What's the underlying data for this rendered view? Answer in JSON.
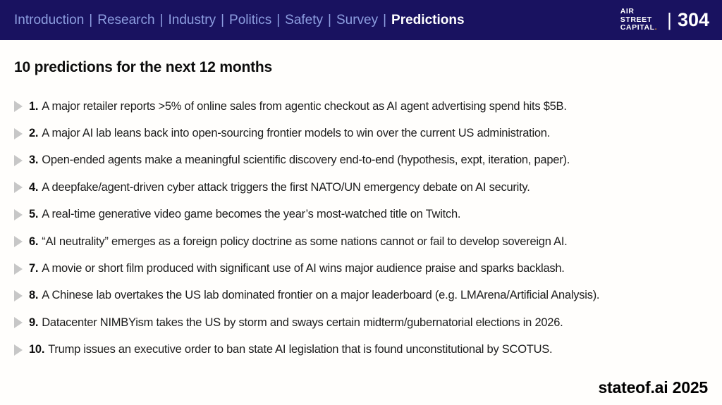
{
  "header": {
    "nav": [
      "Introduction",
      "Research",
      "Industry",
      "Politics",
      "Safety",
      "Survey",
      "Predictions"
    ],
    "active_nav": "Predictions",
    "separator": "|",
    "logo": {
      "line1": "AIR",
      "line2": "STREET",
      "line3": "CAPITAL",
      "dot": "."
    },
    "page": {
      "separator": "|",
      "number": "304"
    }
  },
  "main": {
    "title": "10 predictions for the next 12 months"
  },
  "predictions": [
    {
      "number": "1.",
      "text": "A major retailer reports >5% of online sales from agentic checkout as AI agent advertising spend hits $5B."
    },
    {
      "number": "2.",
      "text": "A major AI lab leans back into open-sourcing frontier models to win over the current US administration."
    },
    {
      "number": "3.",
      "text": "Open-ended agents make a meaningful scientific discovery end-to-end (hypothesis, expt, iteration, paper)."
    },
    {
      "number": "4.",
      "text": "A deepfake/agent-driven cyber attack triggers the first NATO/UN emergency debate on AI security."
    },
    {
      "number": "5.",
      "text": "A real-time generative video game becomes the year’s most-watched title on Twitch."
    },
    {
      "number": "6.",
      "text": "“AI neutrality” emerges as a foreign policy doctrine as some nations cannot or fail to develop sovereign AI."
    },
    {
      "number": "7.",
      "text": "A movie or short film produced with significant use of AI wins major audience praise and sparks backlash."
    },
    {
      "number": "8.",
      "text": "A Chinese lab overtakes the US lab dominated frontier on a major leaderboard (e.g. LMArena/Artificial Analysis)."
    },
    {
      "number": "9.",
      "text": "Datacenter NIMBYism takes the US by storm and sways certain midterm/gubernatorial elections in 2026."
    },
    {
      "number": "10.",
      "text": "Trump issues an executive order to ban state AI legislation that is found unconstitutional by SCOTUS."
    }
  ],
  "footer": {
    "brand": "stateof.ai 2025"
  },
  "colors": {
    "header_bg": "#191260",
    "nav_link": "#8d9ee0",
    "nav_active": "#ffffff",
    "logo_dot_orange": "#f59c22",
    "bullet_gray": "#c7c7c7",
    "body_text": "#1d1d1d"
  }
}
